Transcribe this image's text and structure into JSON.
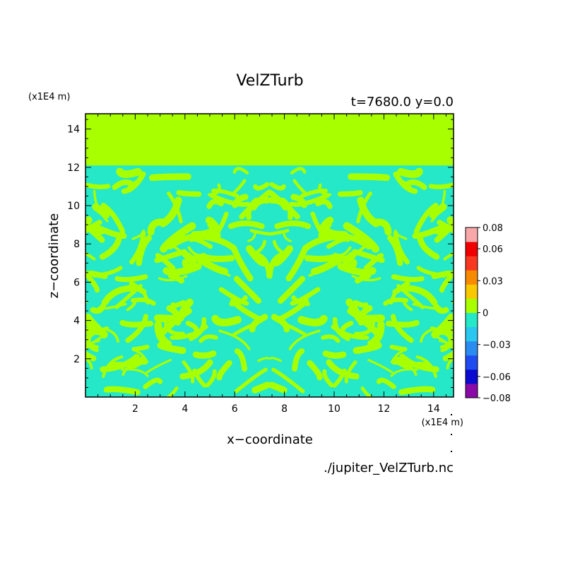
{
  "colors": {
    "background": "#ffffff",
    "axis": "#000000",
    "colorbar": [
      "#8a0aa8",
      "#0a0ad0",
      "#1f4cf0",
      "#2a8cf0",
      "#2ac8f0",
      "#24e8c8",
      "#a8ff00",
      "#f8c800",
      "#f88a00",
      "#f83820",
      "#f00000",
      "#f8a8a8"
    ]
  },
  "chart_data": {
    "type": "heatmap",
    "title": "VelZTurb",
    "subtitle": "t=7680.0 y=0.0",
    "xlabel": "x−coordinate",
    "ylabel": "z−coordinate",
    "x_unit": "(x1E4 m)",
    "y_unit": "(x1E4 m)",
    "xlim": [
      0,
      14.8
    ],
    "ylim": [
      0,
      14.8
    ],
    "x_ticks": [
      2,
      4,
      6,
      8,
      10,
      12,
      14
    ],
    "y_ticks": [
      2,
      4,
      6,
      8,
      10,
      12,
      14
    ],
    "x_tick_labels": [
      "2",
      "4",
      "6",
      "8",
      "10",
      "12",
      "14"
    ],
    "y_tick_labels": [
      "2",
      "4",
      "6",
      "8",
      "10",
      "12",
      "14"
    ],
    "colorbar_range": [
      -0.08,
      0.08
    ],
    "colorbar_ticks": [
      0.08,
      0.06,
      0.03,
      0,
      -0.03,
      -0.06,
      -0.08
    ],
    "colorbar_tick_labels": [
      "0.08",
      "0.06",
      "0.03",
      "0",
      "−0.03",
      "−0.06",
      "−0.08"
    ],
    "turbulent_layer_top": 12.1,
    "dominant_values": [
      "0 to 0.015 (green)",
      "−0.015 to 0 (cyan)"
    ],
    "legend_placement": "right",
    "grid": false,
    "source_file": "./jupiter_VelZTurb.nc"
  }
}
